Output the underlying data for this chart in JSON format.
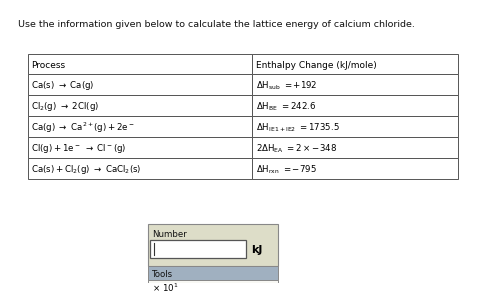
{
  "title": "Use the information given below to calculate the lattice energy of calcium chloride.",
  "col1_header": "Process",
  "col2_header": "Enthalpy Change (kJ/mole)",
  "rows_left": [
    "Ca(s)   →   Ca(g)",
    "Cl₂(g)   →   2Cl(g)",
    "Ca(g)   →   Ca²⁺(g) + 2e⁻",
    "Cl(g) + 1e⁻   →   Cl⁻(g)",
    "Ca(s) + Cl₂(g)   →   CaCl₂(s)"
  ],
  "rows_right": [
    "ΔHₛub = +192",
    "ΔHᴮᴱ = 242.6",
    "ΔHᴵᴱ₁₊ᴵᴱ₂ = 1735.5",
    "2ΔHᴱₐ = 2 × −348",
    "ΔHᵣₓₙ = −795"
  ],
  "number_label": "Number",
  "kj_label": "kJ",
  "tools_label": "Tools",
  "x10_label": "× 10¹",
  "bg_color": "#ffffff",
  "widget_bg": "#e8e8d8",
  "input_bg": "#ffffff",
  "tools_bg": "#a8b8c8",
  "x10_bg": "#f0f0f0"
}
